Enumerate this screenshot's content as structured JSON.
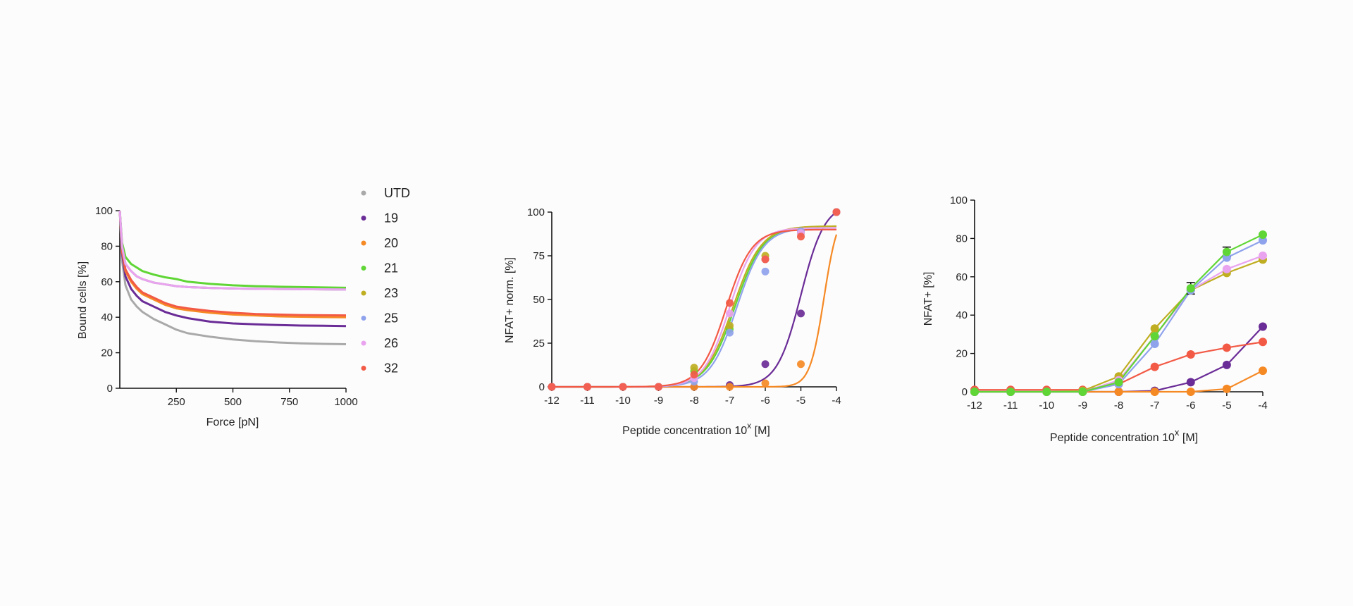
{
  "colors": {
    "UTD": "#a9a9a9",
    "19": "#6a2c96",
    "20": "#f58a25",
    "21": "#5fd635",
    "23": "#bfae22",
    "25": "#8fa3ec",
    "26": "#e9a3ef",
    "32": "#f25a45"
  },
  "chart_data": [
    {
      "type": "line",
      "title": "",
      "xlabel": "Force [pN]",
      "ylabel": "Bound cells [%]",
      "xlim": [
        0,
        1000
      ],
      "ylim": [
        0,
        100
      ],
      "xticks": [
        250,
        500,
        750,
        1000
      ],
      "yticks": [
        0,
        20,
        40,
        60,
        80,
        100
      ],
      "legend": {
        "placement": "right",
        "entries": [
          "UTD",
          "19",
          "20",
          "21",
          "23",
          "25",
          "26",
          "32"
        ]
      },
      "x": [
        0,
        10,
        25,
        50,
        75,
        100,
        150,
        200,
        250,
        300,
        400,
        500,
        600,
        700,
        800,
        900,
        1000
      ],
      "series": [
        {
          "name": "UTD",
          "values": [
            100,
            72,
            58,
            50,
            46,
            43,
            39,
            36,
            33,
            31,
            29,
            27.5,
            26.5,
            25.8,
            25.3,
            25.0,
            24.8
          ]
        },
        {
          "name": "19",
          "values": [
            100,
            76,
            63,
            56,
            52,
            49,
            46,
            43,
            41,
            39.5,
            37.5,
            36.5,
            36,
            35.6,
            35.3,
            35.2,
            35.0
          ]
        },
        {
          "name": "20",
          "values": [
            100,
            78,
            66,
            60,
            56,
            53,
            50,
            47,
            45,
            44,
            42.5,
            41.5,
            41,
            40.5,
            40.3,
            40.1,
            40.0
          ]
        },
        {
          "name": "32",
          "values": [
            100,
            77,
            67,
            61,
            57,
            54,
            51,
            48,
            46,
            45,
            43.5,
            42.5,
            41.8,
            41.5,
            41.2,
            41.1,
            41.0
          ]
        },
        {
          "name": "21",
          "values": [
            100,
            82,
            74,
            70,
            68,
            66,
            64,
            62.5,
            61.5,
            60,
            58.8,
            58,
            57.5,
            57.2,
            57,
            56.8,
            56.6
          ]
        },
        {
          "name": "23",
          "values": [
            100,
            80,
            70,
            66,
            63,
            61.5,
            59.5,
            58.5,
            57.5,
            57,
            56.5,
            56.2,
            56,
            55.9,
            55.8,
            55.7,
            55.6
          ]
        },
        {
          "name": "25",
          "values": [
            100,
            80,
            70,
            66,
            63,
            61.5,
            59.5,
            58.5,
            57.5,
            57,
            56.5,
            56.2,
            56,
            55.9,
            55.8,
            55.7,
            55.6
          ]
        },
        {
          "name": "26",
          "values": [
            100,
            80,
            70,
            66,
            63,
            61.5,
            59.5,
            58.5,
            57.5,
            57,
            56.5,
            56.2,
            56,
            55.9,
            55.8,
            55.7,
            55.6
          ]
        }
      ]
    },
    {
      "type": "scatter",
      "fit": "sigmoid",
      "xlabel_main": "Peptide concentration 10",
      "xlabel_sup": "x",
      "xlabel_unit": " [M]",
      "ylabel": "NFAT+ norm. [%]",
      "xlim": [
        -12,
        -4
      ],
      "ylim": [
        0,
        100
      ],
      "xticks": [
        -12,
        -11,
        -10,
        -9,
        -8,
        -7,
        -6,
        -5,
        -4
      ],
      "yticks": [
        0,
        25,
        50,
        75,
        100
      ],
      "x": [
        -12,
        -11,
        -10,
        -9,
        -8,
        -7,
        -6,
        -5,
        -4
      ],
      "series": [
        {
          "name": "19",
          "values": [
            0,
            0,
            0,
            0,
            0,
            1,
            13,
            42,
            100
          ],
          "fit": {
            "ec50": -5.0,
            "hill": 1.3,
            "top": 105
          }
        },
        {
          "name": "20",
          "values": [
            0,
            0,
            0,
            0,
            0,
            0,
            2,
            13,
            100
          ],
          "fit": {
            "ec50": -4.35,
            "hill": 2.2,
            "top": 102
          }
        },
        {
          "name": "21",
          "values": [
            0,
            0,
            0,
            0,
            9,
            33,
            73,
            88,
            100
          ],
          "fit": {
            "ec50": -6.85,
            "hill": 1.1,
            "top": 92
          }
        },
        {
          "name": "23",
          "values": [
            0,
            0,
            0,
            0,
            11,
            35,
            75,
            88,
            100
          ],
          "fit": {
            "ec50": -6.9,
            "hill": 1.1,
            "top": 92
          }
        },
        {
          "name": "25",
          "values": [
            0,
            0,
            0,
            0,
            3,
            31,
            66,
            89,
            100
          ],
          "fit": {
            "ec50": -6.8,
            "hill": 1.15,
            "top": 91
          }
        },
        {
          "name": "26",
          "values": [
            0,
            0,
            0,
            0,
            5,
            42,
            73,
            88,
            100
          ],
          "fit": {
            "ec50": -7.0,
            "hill": 1.2,
            "top": 91
          }
        },
        {
          "name": "32",
          "values": [
            0,
            0,
            0,
            0,
            7,
            48,
            73,
            86,
            100
          ],
          "fit": {
            "ec50": -7.1,
            "hill": 1.2,
            "top": 90
          }
        }
      ]
    },
    {
      "type": "line",
      "markers": true,
      "xlabel_main": "Peptide concentration 10",
      "xlabel_sup": "x",
      "xlabel_unit": " [M]",
      "ylabel": "NFAT+ [%]",
      "xlim": [
        -12,
        -4
      ],
      "ylim": [
        0,
        100
      ],
      "xticks": [
        -12,
        -11,
        -10,
        -9,
        -8,
        -7,
        -6,
        -5,
        -4
      ],
      "yticks": [
        0,
        20,
        40,
        60,
        80,
        100
      ],
      "x": [
        -12,
        -11,
        -10,
        -9,
        -8,
        -7,
        -6,
        -5,
        -4
      ],
      "series": [
        {
          "name": "19",
          "values": [
            0,
            0,
            0,
            0,
            0,
            0.5,
            5,
            14,
            34
          ]
        },
        {
          "name": "20",
          "values": [
            0,
            0,
            0,
            0,
            0,
            0,
            0,
            1.5,
            11
          ]
        },
        {
          "name": "32",
          "values": [
            1,
            1,
            1,
            1,
            4,
            13,
            19.5,
            23,
            26
          ]
        },
        {
          "name": "23",
          "values": [
            0,
            0,
            0,
            0.5,
            8,
            33,
            53,
            62,
            69
          ]
        },
        {
          "name": "26",
          "values": [
            0,
            0,
            0,
            0,
            6,
            29,
            53,
            64,
            71
          ]
        },
        {
          "name": "25",
          "values": [
            0,
            0,
            0,
            0,
            4,
            25,
            53,
            70,
            79
          ]
        },
        {
          "name": "21",
          "values": [
            0,
            0,
            0,
            0,
            5,
            29,
            54,
            73,
            82
          ]
        }
      ],
      "error_bars": [
        {
          "series": "21",
          "x": -6,
          "err": 3
        },
        {
          "series": "21",
          "x": -5,
          "err": 2.5
        }
      ]
    }
  ]
}
